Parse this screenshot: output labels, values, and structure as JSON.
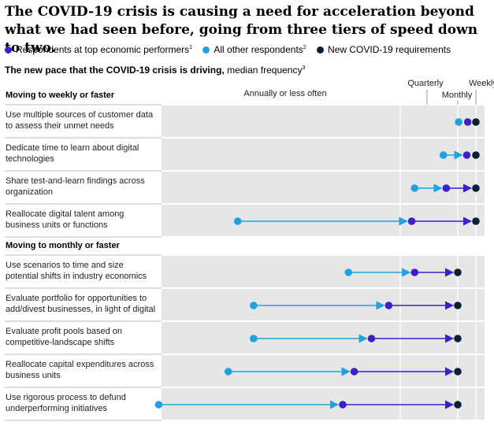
{
  "title": "The COVID-19 crisis is causing a need for acceleration beyond what we had seen before, going from three tiers of speed down to two.",
  "subtitle": {
    "bold": "The new pace that the COVID-19 crisis is driving,",
    "normal": " median frequency",
    "sup": "3"
  },
  "legend": [
    {
      "label": "Respondents at top economic performers",
      "sup": "1",
      "color": "#3d1ec8"
    },
    {
      "label": "All other respondents",
      "sup": "2",
      "color": "#1fa2e0"
    },
    {
      "label": "New COVID-19 requirements",
      "sup": "",
      "color": "#0b1e33"
    }
  ],
  "colors": {
    "top": "#3d1ec8",
    "other": "#1fa2e0",
    "covid": "#0b1e33",
    "band": "#e6e6e6",
    "divider": "#bdbdbd"
  },
  "chart_data": {
    "type": "dot-arrow",
    "scale_note": "x: 0 = Annually or less often, 1 = Quarterly, 2 = Monthly, 3 = Weekly",
    "axis_labels": [
      {
        "text": "Annually or less often",
        "value": 0
      },
      {
        "text": "Quarterly",
        "value": 1
      },
      {
        "text": "Monthly",
        "value": 2
      },
      {
        "text": "Weekly",
        "value": 3
      }
    ],
    "sections": [
      {
        "label": "Moving to weekly or faster",
        "rows": [
          {
            "label": [
              "Use multiple sources of customer data",
              "to assess their unmet needs"
            ],
            "other": 2.05,
            "top": 2.55,
            "covid": 3.0
          },
          {
            "label": [
              "Dedicate time to learn about digital",
              "technologies"
            ],
            "other": 1.75,
            "top": 2.5,
            "covid": 3.0
          },
          {
            "label": [
              "Share test-and-learn findings across",
              "organization"
            ],
            "other": 1.25,
            "top": 1.8,
            "covid": 3.0
          },
          {
            "label": [
              "Reallocate digital talent among",
              "business units or functions"
            ],
            "other": -0.75,
            "top": 1.2,
            "covid": 3.0
          }
        ]
      },
      {
        "label": "Moving to monthly or faster",
        "rows": [
          {
            "label": [
              "Use scenarios to time and size",
              "potential shifts in industry economics"
            ],
            "other": 0.55,
            "top": 1.25,
            "covid": 2.0
          },
          {
            "label": [
              "Evaluate portfolio for opportunities to",
              "add/divest businesses, in light of digital"
            ],
            "other": -0.5,
            "top": 0.9,
            "covid": 2.0
          },
          {
            "label": [
              "Evaluate profit pools based on",
              "competitive-landscape shifts"
            ],
            "other": -0.5,
            "top": 0.75,
            "covid": 2.0
          },
          {
            "label": [
              "Reallocate capital expenditures across",
              "business units"
            ],
            "other": -0.9,
            "top": 0.6,
            "covid": 2.0
          },
          {
            "label": [
              "Use rigorous process to defund",
              "underperforming initiatives"
            ],
            "other": -2.0,
            "top": 0.5,
            "covid": 2.0
          }
        ]
      }
    ]
  }
}
